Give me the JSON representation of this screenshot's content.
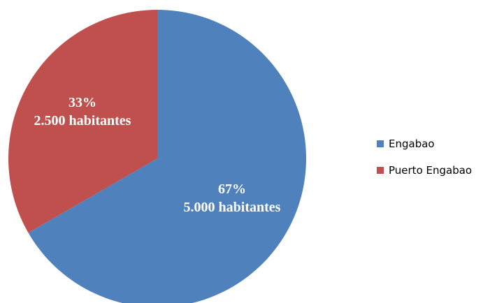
{
  "chart_data": {
    "type": "pie",
    "title": "",
    "start_angle_deg": 0,
    "direction": "clockwise",
    "slices": [
      {
        "name": "Engabao",
        "value": 5000,
        "percent_label": "67%",
        "value_label": "5.000 habitantes",
        "color": "#4F81BD"
      },
      {
        "name": "Puerto Engabao",
        "value": 2500,
        "percent_label": "33%",
        "value_label": "2.500 habitantes",
        "color": "#C0504D"
      }
    ],
    "legend": {
      "position": "right",
      "entries": [
        "Engabao",
        "Puerto Engabao"
      ]
    }
  }
}
